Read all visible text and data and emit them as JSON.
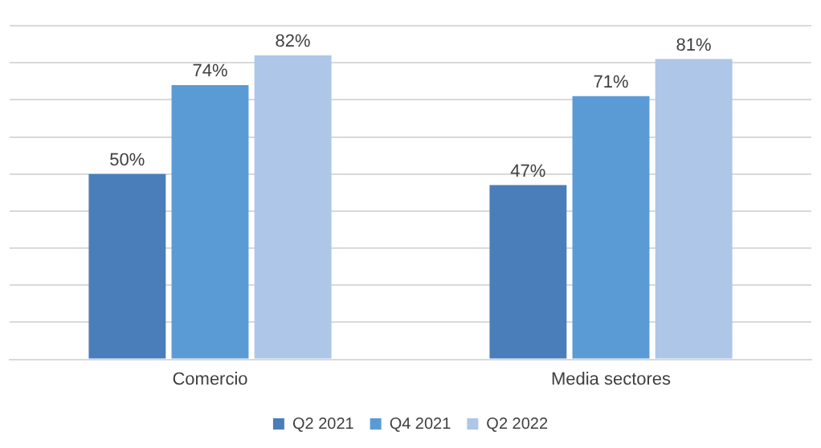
{
  "chart_data": {
    "type": "bar",
    "categories": [
      "Comercio",
      "Media sectores"
    ],
    "series": [
      {
        "name": "Q2 2021",
        "color": "#4a7ebb",
        "values": [
          50,
          47
        ],
        "value_labels": [
          "50%",
          "47%"
        ]
      },
      {
        "name": "Q4 2021",
        "color": "#5b9bd5",
        "values": [
          74,
          71
        ],
        "value_labels": [
          "74%",
          "71%"
        ]
      },
      {
        "name": "Q2 2022",
        "color": "#aec6e8",
        "values": [
          82,
          81
        ],
        "value_labels": [
          "82%",
          "81%"
        ]
      }
    ],
    "grid": "y",
    "legend": "bottom",
    "tick_labels": "x"
  }
}
